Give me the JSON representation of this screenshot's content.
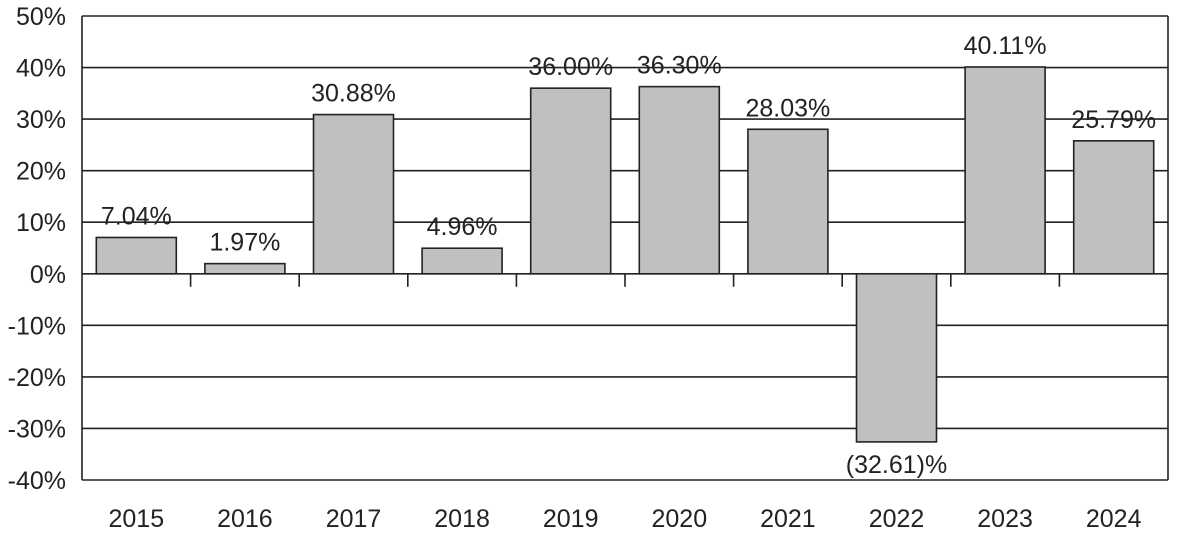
{
  "chart_data": {
    "type": "bar",
    "categories": [
      "2015",
      "2016",
      "2017",
      "2018",
      "2019",
      "2020",
      "2021",
      "2022",
      "2023",
      "2024"
    ],
    "values": [
      7.04,
      1.97,
      30.88,
      4.96,
      36.0,
      36.3,
      28.03,
      -32.61,
      40.11,
      25.79
    ],
    "value_labels": [
      "7.04%",
      "1.97%",
      "30.88%",
      "4.96%",
      "36.00%",
      "36.30%",
      "28.03%",
      "(32.61)%",
      "40.11%",
      "25.79%"
    ],
    "ylim": [
      -40,
      50
    ],
    "yticks": [
      50,
      40,
      30,
      20,
      10,
      0,
      -10,
      -20,
      -30,
      -40
    ],
    "ytick_labels": [
      "50%",
      "40%",
      "30%",
      "20%",
      "10%",
      "0%",
      "-10%",
      "-20%",
      "-30%",
      "-40%"
    ],
    "grid": true,
    "bar_color": "#c0c0c0",
    "title": "",
    "xlabel": "",
    "ylabel": ""
  }
}
